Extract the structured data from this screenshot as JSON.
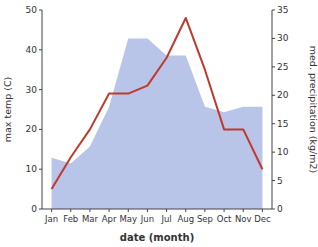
{
  "chart_data": {
    "type": "line",
    "categories": [
      "Jan",
      "Feb",
      "Mar",
      "Apr",
      "May",
      "Jun",
      "Jul",
      "Aug",
      "Sep",
      "Oct",
      "Nov",
      "Dec"
    ],
    "xlabel": "date (month)",
    "ylabel": "max temp (C)",
    "y2label": "med. precipitation (kg/m2)",
    "series": [
      {
        "type": "area",
        "axis": "y2",
        "color": "#b8c4e8",
        "values": [
          9,
          8,
          11,
          18,
          30,
          30,
          27,
          27,
          18,
          17,
          18,
          18
        ]
      },
      {
        "type": "line",
        "color": "#c0392b",
        "values": [
          5,
          13,
          20,
          29,
          29,
          31,
          38,
          48,
          35,
          20,
          20,
          10
        ]
      }
    ],
    "ylim": [
      0,
      50
    ],
    "yticks": [
      0,
      10,
      20,
      30,
      40,
      50
    ],
    "y2lim": [
      0,
      35
    ],
    "y2ticks": [
      0,
      5,
      10,
      15,
      20,
      25,
      30,
      35
    ],
    "grid": false
  }
}
